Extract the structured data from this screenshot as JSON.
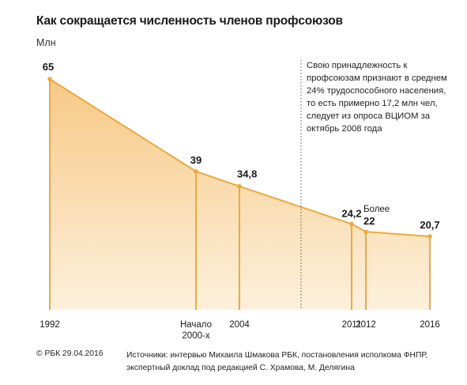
{
  "title": "Как сокращается численность членов профсоюзов",
  "unit_label": "Млн",
  "annotation": "Свою принадлежность к профсоюзам признают в среднем 24% трудоспособного населения, то есть примерно 17,2 млн чел, следует из опроса ВЦИОМ за октябрь 2008 года",
  "footer": {
    "copyright": "© РБК 29.04.2016",
    "sources_label": "Источники:",
    "sources_text": "интервью Михаила Шмакова РБК, постановления исполкома ФНПР, экспертный доклад под редакцией С. Храмова, М. Делягина"
  },
  "colors": {
    "fill_top": "#f7c986",
    "fill_bottom": "#fdf0dc",
    "line": "#f0a83a",
    "text": "#1a1a1a"
  },
  "chart_data": {
    "type": "area",
    "title": "Как сокращается численность членов профсоюзов",
    "ylabel": "Млн",
    "xlabel": "",
    "ylim": [
      0,
      65
    ],
    "grid": false,
    "points": [
      {
        "x": 1992,
        "x_label": "1992",
        "value": 65,
        "value_label": "65"
      },
      {
        "x": 2002,
        "x_label": "Начало 2000-х",
        "value": 39,
        "value_label": "39"
      },
      {
        "x": 2004,
        "x_label": "2004",
        "value": 34.8,
        "value_label": "34,8"
      },
      {
        "x": 2011,
        "x_label": "2011",
        "value": 24.2,
        "value_label": "24,2"
      },
      {
        "x": 2012,
        "x_label": "2012",
        "value": 22,
        "value_label": "22",
        "value_prefix": "Более"
      },
      {
        "x": 2016,
        "x_label": "2016",
        "value": 20.7,
        "value_label": "20,7"
      }
    ],
    "reference_line": {
      "x": 2008,
      "style": "dotted"
    }
  }
}
